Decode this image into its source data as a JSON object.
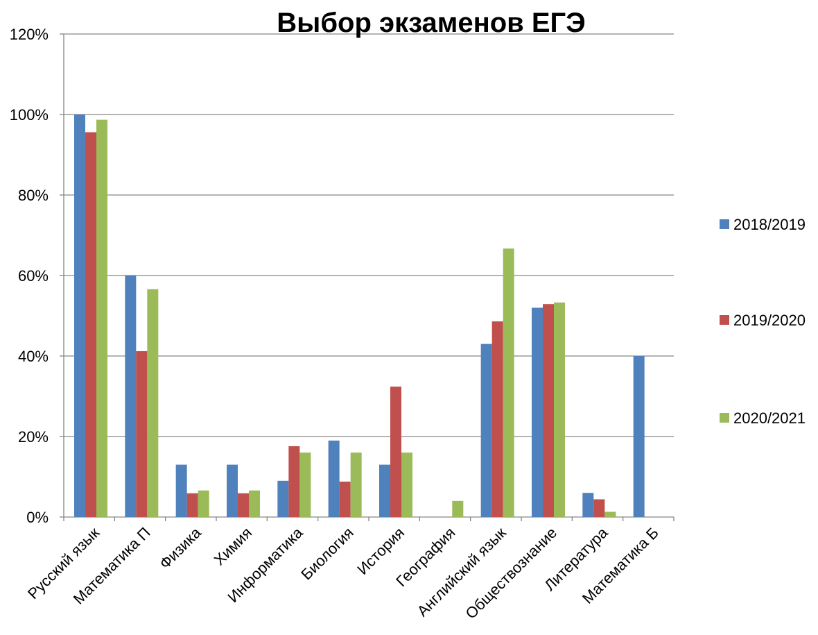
{
  "chart_data": {
    "type": "bar",
    "title": "Выбор экзаменов ЕГЭ",
    "xlabel": "",
    "ylabel": "",
    "ylim": [
      0,
      1.2
    ],
    "yticks": [
      0,
      0.2,
      0.4,
      0.6,
      0.8,
      1.0,
      1.2
    ],
    "ytick_labels": [
      "0%",
      "20%",
      "40%",
      "60%",
      "80%",
      "100%",
      "120%"
    ],
    "grid": true,
    "legend_position": "right",
    "categories": [
      "Русский язык",
      "Математика П",
      "Физика",
      "Химия",
      "Информатика",
      "Биология",
      "История",
      "География",
      "Английский язык",
      "Обществознание",
      "Литература",
      "Математика Б"
    ],
    "series": [
      {
        "name": "2018/2019",
        "color": "#4F81BD",
        "values": [
          1.0,
          0.6,
          0.13,
          0.13,
          0.09,
          0.19,
          0.13,
          0.0,
          0.43,
          0.52,
          0.06,
          0.4
        ]
      },
      {
        "name": "2019/2020",
        "color": "#C0504D",
        "values": [
          0.956,
          0.412,
          0.059,
          0.059,
          0.176,
          0.088,
          0.324,
          0.0,
          0.486,
          0.529,
          0.044,
          0.0
        ]
      },
      {
        "name": "2020/2021",
        "color": "#9BBB59",
        "values": [
          0.987,
          0.566,
          0.066,
          0.066,
          0.16,
          0.16,
          0.16,
          0.04,
          0.667,
          0.533,
          0.013,
          0.0
        ]
      }
    ]
  }
}
